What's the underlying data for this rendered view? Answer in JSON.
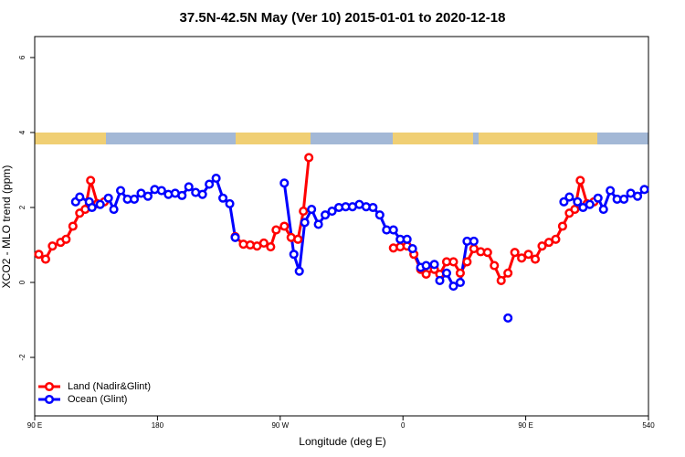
{
  "chart_data": {
    "type": "line",
    "title": "37.5N-42.5N May (Ver 10)   2015-01-01 to 2020-12-18",
    "x_label": "Longitude (deg E)",
    "y_label": "XCO2 - MLO trend (ppm)",
    "xlim": [
      90,
      540
    ],
    "xticks": [
      {
        "value": 90,
        "label": "90 E"
      },
      180,
      {
        "value": 270,
        "label": "90 W"
      },
      {
        "value": 360,
        "label": "0"
      },
      {
        "value": 450,
        "label": "90 E"
      },
      540
    ],
    "ylim": [
      -3.56,
      6.56
    ],
    "yticks": [
      -2,
      0,
      2,
      4,
      6
    ],
    "legend": "bottom-left",
    "series": [
      {
        "name": "Land (Nadir&Glint)",
        "color": "#ff0000",
        "x": [
          93,
          98,
          103,
          109,
          113,
          118,
          123,
          127,
          131,
          136,
          141,
          null,
          237,
          243,
          248,
          253,
          258,
          263,
          267,
          273,
          278,
          283,
          287,
          291,
          null,
          353,
          358,
          363,
          368,
          373,
          377,
          383,
          387,
          392,
          397,
          402,
          407,
          412,
          417,
          422,
          427,
          432,
          437,
          442,
          447,
          452,
          457,
          462,
          467,
          472,
          477,
          482,
          486,
          490,
          495,
          500
        ],
        "values": [
          0.75,
          0.62,
          0.97,
          1.07,
          1.15,
          1.5,
          1.85,
          1.95,
          2.72,
          2.1,
          2.15,
          null,
          1.22,
          1.02,
          1.0,
          0.97,
          1.05,
          0.95,
          1.4,
          1.5,
          1.2,
          1.15,
          1.9,
          3.33,
          null,
          0.92,
          0.95,
          0.97,
          0.75,
          0.35,
          0.22,
          0.35,
          0.22,
          0.55,
          0.55,
          0.25,
          0.55,
          0.9,
          0.82,
          0.8,
          0.45,
          0.05,
          0.25,
          0.8,
          0.65,
          0.75,
          0.62,
          0.97,
          1.07,
          1.15,
          1.5,
          1.85,
          1.95,
          2.72,
          2.1,
          2.15
        ]
      },
      {
        "name": "Ocean (Glint)",
        "color": "#0000ff",
        "x": [
          120,
          123,
          130,
          132,
          138,
          144,
          148,
          153,
          158,
          163,
          168,
          173,
          178,
          183,
          188,
          193,
          198,
          203,
          208,
          213,
          218,
          223,
          228,
          233,
          237,
          null,
          273,
          280,
          284,
          288,
          293,
          298,
          303,
          308,
          313,
          318,
          323,
          328,
          333,
          338,
          343,
          348,
          353,
          358,
          363,
          367,
          373,
          377,
          383,
          387,
          392,
          397,
          402,
          407,
          412,
          null,
          437,
          null,
          478,
          482,
          488,
          492,
          497,
          503,
          507,
          512,
          517,
          522,
          527,
          532,
          537
        ],
        "values": [
          2.15,
          2.28,
          2.15,
          2.0,
          2.08,
          2.25,
          1.95,
          2.45,
          2.22,
          2.22,
          2.38,
          2.3,
          2.48,
          2.45,
          2.35,
          2.38,
          2.32,
          2.55,
          2.4,
          2.35,
          2.62,
          2.78,
          2.25,
          2.1,
          1.2,
          null,
          2.65,
          0.75,
          0.3,
          1.6,
          1.95,
          1.55,
          1.8,
          1.9,
          2.0,
          2.02,
          2.02,
          2.08,
          2.02,
          2.0,
          1.8,
          1.4,
          1.4,
          1.15,
          1.15,
          0.9,
          0.4,
          0.45,
          0.48,
          0.05,
          0.25,
          -0.1,
          0.0,
          1.1,
          1.1,
          null,
          -0.95,
          null,
          2.15,
          2.28,
          2.15,
          2.0,
          2.08,
          2.25,
          1.95,
          2.45,
          2.22,
          2.22,
          2.38,
          2.3,
          2.48
        ]
      }
    ]
  }
}
